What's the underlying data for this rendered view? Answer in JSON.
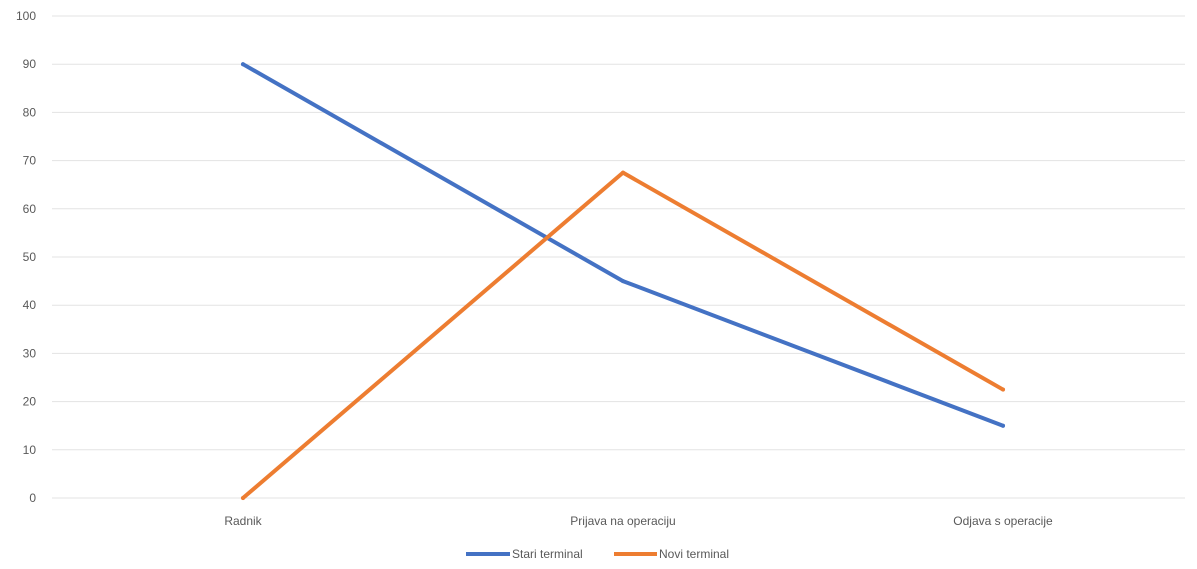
{
  "chart_data": {
    "type": "line",
    "categories": [
      "Radnik",
      "Prijava na operaciju",
      "Odjava s operacije"
    ],
    "series": [
      {
        "name": "Stari terminal",
        "values": [
          90,
          45,
          15
        ],
        "color": "#4472c4"
      },
      {
        "name": "Novi terminal",
        "values": [
          0,
          67.5,
          22.5
        ],
        "color": "#ed7d31"
      }
    ],
    "yticks": [
      "0",
      "10",
      "20",
      "30",
      "40",
      "50",
      "60",
      "70",
      "80",
      "90",
      "100"
    ],
    "ylim": [
      0,
      100
    ],
    "grid": true,
    "legend_position": "bottom"
  }
}
